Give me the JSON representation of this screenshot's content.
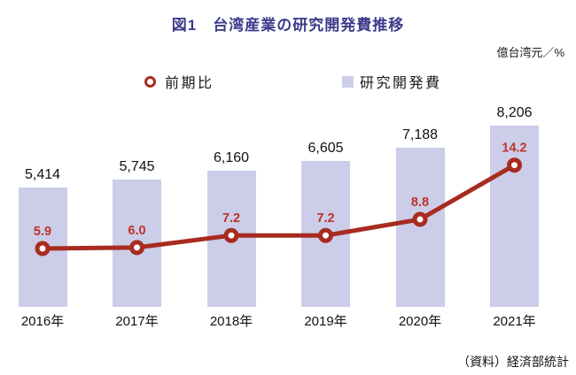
{
  "colors": {
    "title": "#3b3b8c",
    "bar_fill": "#cccde8",
    "line": "#a82b20",
    "line_label": "#bf3328",
    "text": "#1a1a1a"
  },
  "chart_data": {
    "type": "combo-bar-line",
    "title": "図1　台湾産業の研究開発費推移",
    "unit": "億台湾元／%",
    "source": "（資料）経済部統計",
    "categories": [
      "2016年",
      "2017年",
      "2018年",
      "2019年",
      "2020年",
      "2021年"
    ],
    "series": [
      {
        "name": "前期比",
        "type": "line",
        "values": [
          5.9,
          6.0,
          7.2,
          7.2,
          8.8,
          14.2
        ],
        "labels": [
          "5.9",
          "6.0",
          "7.2",
          "7.2",
          "8.8",
          "14.2"
        ],
        "color": "#a82b20"
      },
      {
        "name": "研究開発費",
        "type": "bar",
        "values": [
          5414,
          5745,
          6160,
          6605,
          7188,
          8206
        ],
        "labels": [
          "5,414",
          "5,745",
          "6,160",
          "6,605",
          "7,188",
          "8,206"
        ],
        "color": "#cccde8"
      }
    ],
    "grid": false,
    "axes_visible": false,
    "legend_position": "top"
  }
}
